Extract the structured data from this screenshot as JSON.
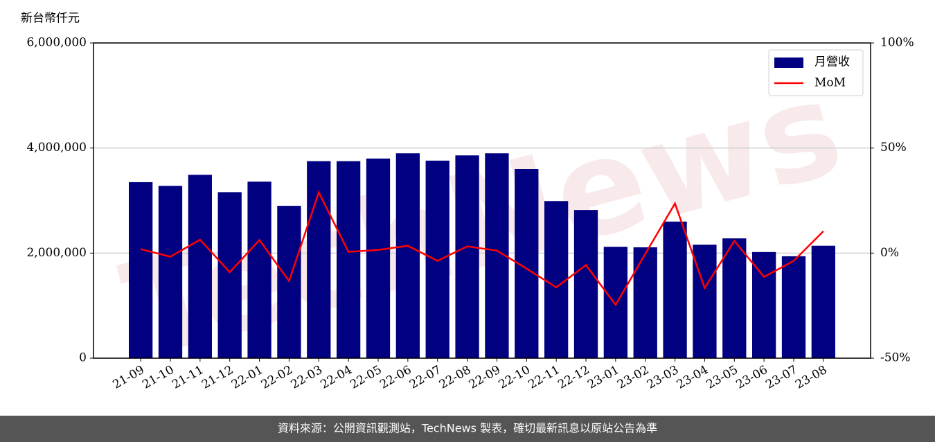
{
  "chart_data": {
    "type": "bar_line",
    "y_label": "新台幣仟元",
    "watermark": "TechNews",
    "footer": "資料來源：公開資訊觀測站，TechNews 製表，確切最新訊息以原站公告為準",
    "categories": [
      "21-09",
      "21-10",
      "21-11",
      "21-12",
      "22-01",
      "22-02",
      "22-03",
      "22-04",
      "22-05",
      "22-06",
      "22-07",
      "22-08",
      "22-09",
      "22-10",
      "22-11",
      "22-12",
      "23-01",
      "23-02",
      "23-03",
      "23-04",
      "23-05",
      "23-06",
      "23-07",
      "23-08"
    ],
    "series": [
      {
        "name": "月營收",
        "type": "bar",
        "color": "#000080",
        "values": [
          3350000,
          3280000,
          3490000,
          3160000,
          3360000,
          2900000,
          3750000,
          3750000,
          3800000,
          3900000,
          3760000,
          3860000,
          3900000,
          3600000,
          2990000,
          2820000,
          2120000,
          2110000,
          2600000,
          2160000,
          2280000,
          2020000,
          1940000,
          2140000
        ]
      },
      {
        "name": "MoM",
        "type": "line",
        "color": "#ff0000",
        "axis": "y2",
        "values": [
          1.9,
          -1.7,
          6.4,
          -9.1,
          6.2,
          -13.3,
          28.9,
          0.6,
          1.5,
          3.5,
          -3.7,
          3.2,
          1.2,
          -7.4,
          -16.3,
          -5.7,
          -24.6,
          -0.4,
          23.6,
          -16.6,
          5.8,
          -11.3,
          -3.7,
          10.4
        ]
      }
    ],
    "ylim": [
      0,
      6000000
    ],
    "yticks": [
      0,
      {
        "value": 2000000,
        "label": "2,000,000"
      },
      {
        "value": 4000000,
        "label": "4,000,000"
      },
      {
        "value": 6000000,
        "label": "6,000,000"
      }
    ],
    "y2lim": [
      -50,
      100
    ],
    "y2ticks": [
      {
        "value": -50,
        "label": "-50%"
      },
      {
        "value": 0,
        "label": "0%"
      },
      {
        "value": 50,
        "label": "50%"
      },
      {
        "value": 100,
        "label": "100%"
      }
    ],
    "grid": true,
    "legend": "upper right"
  }
}
